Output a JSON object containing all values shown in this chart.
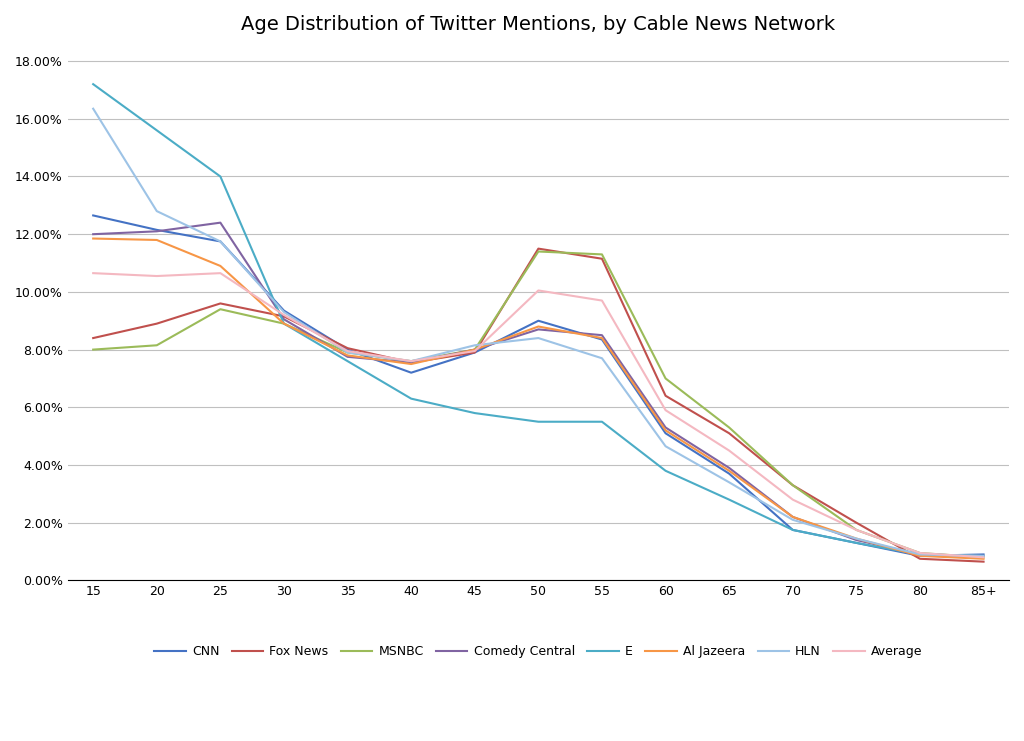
{
  "title": "Age Distribution of Twitter Mentions, by Cable News Network",
  "x_labels": [
    "15",
    "20",
    "25",
    "30",
    "35",
    "40",
    "45",
    "50",
    "55",
    "60",
    "65",
    "70",
    "75",
    "80",
    "85+"
  ],
  "x_values": [
    15,
    20,
    25,
    30,
    35,
    40,
    45,
    50,
    55,
    60,
    65,
    70,
    75,
    80,
    85
  ],
  "series": {
    "CNN": {
      "color": "#4472C4",
      "values": [
        0.1265,
        0.1215,
        0.1175,
        0.0935,
        0.08,
        0.072,
        0.079,
        0.09,
        0.0835,
        0.051,
        0.037,
        0.0175,
        0.013,
        0.0085,
        0.009
      ]
    },
    "Fox News": {
      "color": "#C0504D",
      "values": [
        0.084,
        0.089,
        0.096,
        0.0915,
        0.0805,
        0.0755,
        0.079,
        0.115,
        0.1115,
        0.064,
        0.051,
        0.033,
        0.02,
        0.0075,
        0.0065
      ]
    },
    "MSNBC": {
      "color": "#9BBB59",
      "values": [
        0.08,
        0.0815,
        0.094,
        0.089,
        0.079,
        0.076,
        0.08,
        0.114,
        0.113,
        0.07,
        0.053,
        0.033,
        0.0175,
        0.0095,
        0.008
      ]
    },
    "Comedy Central": {
      "color": "#8064A2",
      "values": [
        0.12,
        0.121,
        0.124,
        0.0905,
        0.0775,
        0.0755,
        0.08,
        0.087,
        0.085,
        0.053,
        0.039,
        0.022,
        0.014,
        0.009,
        0.0085
      ]
    },
    "E": {
      "color": "#4BACC6",
      "values": [
        0.172,
        0.156,
        0.14,
        0.089,
        0.076,
        0.063,
        0.058,
        0.055,
        0.055,
        0.038,
        0.028,
        0.0175,
        0.013,
        0.009,
        0.0085
      ]
    },
    "Al Jazeera": {
      "color": "#F79646",
      "values": [
        0.1185,
        0.118,
        0.109,
        0.089,
        0.078,
        0.075,
        0.08,
        0.088,
        0.084,
        0.052,
        0.038,
        0.022,
        0.0145,
        0.0085,
        0.0075
      ]
    },
    "HLN": {
      "color": "#9DC3E6",
      "values": [
        0.1635,
        0.128,
        0.1175,
        0.093,
        0.079,
        0.076,
        0.0815,
        0.084,
        0.077,
        0.0465,
        0.034,
        0.021,
        0.0145,
        0.009,
        0.0085
      ]
    },
    "Average": {
      "color": "#F4B8C1",
      "values": [
        0.1065,
        0.1055,
        0.1065,
        0.092,
        0.0795,
        0.076,
        0.0795,
        0.1005,
        0.097,
        0.059,
        0.045,
        0.028,
        0.0175,
        0.0095,
        0.008
      ]
    }
  },
  "ylim": [
    0.0,
    0.185
  ],
  "yticks": [
    0.0,
    0.02,
    0.04,
    0.06,
    0.08,
    0.1,
    0.12,
    0.14,
    0.16,
    0.18
  ],
  "background_color": "#FFFFFF",
  "grid_color": "#C0C0C0"
}
